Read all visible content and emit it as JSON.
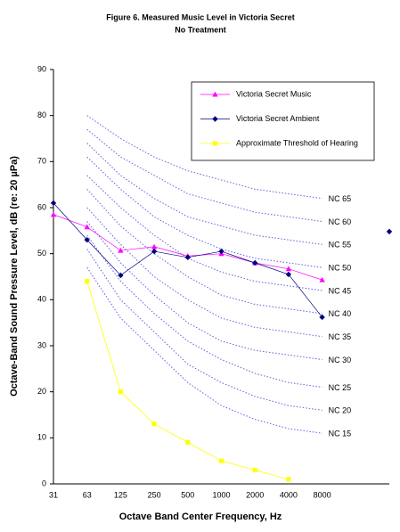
{
  "chart_data": {
    "type": "line",
    "title": "Figure 6. Measured Music Level in Victoria Secret",
    "subtitle": "No Treatment",
    "x_label": "Octave Band Center Frequency, Hz",
    "y_label": "Octave-Band Sound Pressure Level, dB (re: 20 µPa)",
    "categories": [
      "31",
      "63",
      "125",
      "250",
      "500",
      "1000",
      "2000",
      "4000",
      "8000",
      null,
      null
    ],
    "ylim": [
      0,
      90
    ],
    "yticks": [
      0,
      10,
      20,
      30,
      40,
      50,
      60,
      70,
      80,
      90
    ],
    "grid": false,
    "legend_position": "upper right",
    "series": [
      {
        "name": "Victoria Secret Music",
        "color": "#ff00ff",
        "marker": "triangle",
        "values": [
          58.5,
          55.8,
          50.7,
          51.5,
          49.5,
          50,
          48,
          46.7,
          44.3,
          null,
          null
        ]
      },
      {
        "name": "Victoria Secret Ambient",
        "color": "#000080",
        "marker": "diamond",
        "values": [
          61,
          53,
          45.3,
          50.5,
          49.2,
          50.5,
          48,
          45.5,
          36.2,
          null,
          54.8
        ]
      },
      {
        "name": "Approximate Threshold of Hearing",
        "color": "#ffff00",
        "marker": "square",
        "values": [
          null,
          44,
          20,
          13,
          9,
          5,
          3,
          1,
          null,
          null,
          null
        ]
      }
    ],
    "reference_color": "#6060e0",
    "reference_curves": [
      {
        "label": "NC 65",
        "values": [
          null,
          80,
          75,
          71,
          68,
          66,
          64,
          63,
          62,
          null,
          null
        ]
      },
      {
        "label": "NC 60",
        "values": [
          null,
          77,
          71,
          67,
          63,
          61,
          59,
          58,
          57,
          null,
          null
        ]
      },
      {
        "label": "NC 55",
        "values": [
          null,
          74,
          67,
          62,
          58,
          56,
          54,
          53,
          52,
          null,
          null
        ]
      },
      {
        "label": "NC 50",
        "values": [
          null,
          71,
          64,
          58,
          54,
          51,
          49,
          48,
          47,
          null,
          null
        ]
      },
      {
        "label": "NC 45",
        "values": [
          null,
          67,
          60,
          54,
          49,
          46,
          44,
          43,
          42,
          null,
          null
        ]
      },
      {
        "label": "NC 40",
        "values": [
          null,
          64,
          56,
          50,
          45,
          41,
          39,
          38,
          37,
          null,
          null
        ]
      },
      {
        "label": "NC 35",
        "values": [
          null,
          60,
          52,
          45,
          40,
          36,
          34,
          33,
          32,
          null,
          null
        ]
      },
      {
        "label": "NC 30",
        "values": [
          null,
          57,
          48,
          41,
          35,
          31,
          29,
          28,
          27,
          null,
          null
        ]
      },
      {
        "label": "NC 25",
        "values": [
          null,
          54,
          44,
          37,
          31,
          27,
          24,
          22,
          21,
          null,
          null
        ]
      },
      {
        "label": "NC 20",
        "values": [
          null,
          51,
          40,
          33,
          26,
          22,
          19,
          17,
          16,
          null,
          null
        ]
      },
      {
        "label": "NC 15",
        "values": [
          null,
          47,
          36,
          29,
          22,
          17,
          14,
          12,
          11,
          null,
          null
        ]
      }
    ]
  }
}
